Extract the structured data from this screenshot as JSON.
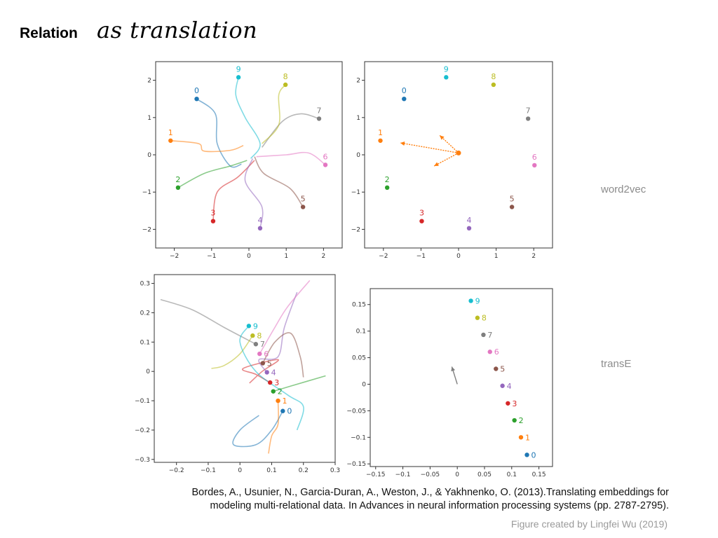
{
  "slide": {
    "title_bold": "Relation",
    "title_italic": "as translation",
    "row_labels": [
      "word2vec",
      "transE"
    ],
    "citation_line1": "Bordes, A., Usunier, N., Garcia-Duran, A., Weston, J., & Yakhnenko, O. (2013).Translating embeddings for",
    "citation_line2": "modeling multi-relational data. In Advances in neural information processing systems (pp. 2787-2795).",
    "credit": "Figure created by Lingfei Wu (2019)"
  },
  "colors": [
    "#1f77b4",
    "#ff7f0e",
    "#2ca02c",
    "#d62728",
    "#9467bd",
    "#8c564b",
    "#e377c2",
    "#7f7f7f",
    "#bcbd22",
    "#17becf"
  ],
  "chart_data": [
    {
      "type": "line",
      "xlim": [
        -2.5,
        2.5
      ],
      "ylim": [
        -2.5,
        2.5
      ],
      "xticks": [
        -2,
        -1,
        0,
        1,
        2
      ],
      "yticks": [
        -2,
        -1,
        0,
        1,
        2
      ],
      "points": [
        {
          "label": "0",
          "x": -1.4,
          "y": 1.5
        },
        {
          "label": "1",
          "x": -2.1,
          "y": 0.38
        },
        {
          "label": "2",
          "x": -1.9,
          "y": -0.88
        },
        {
          "label": "3",
          "x": -0.96,
          "y": -1.78
        },
        {
          "label": "4",
          "x": 0.3,
          "y": -1.97
        },
        {
          "label": "5",
          "x": 1.45,
          "y": -1.4
        },
        {
          "label": "6",
          "x": 2.05,
          "y": -0.27
        },
        {
          "label": "7",
          "x": 1.88,
          "y": 0.97
        },
        {
          "label": "8",
          "x": 0.98,
          "y": 1.88
        },
        {
          "label": "9",
          "x": -0.28,
          "y": 2.08
        }
      ],
      "trajectories": [
        [
          [
            -1.4,
            1.5
          ],
          [
            -0.9,
            1.1
          ],
          [
            -0.85,
            0.3
          ],
          [
            -0.5,
            -0.3
          ],
          [
            -0.2,
            -0.25
          ]
        ],
        [
          [
            -2.1,
            0.38
          ],
          [
            -1.35,
            0.3
          ],
          [
            -1.2,
            0.1
          ],
          [
            -0.5,
            0.12
          ],
          [
            -0.15,
            0.25
          ]
        ],
        [
          [
            -1.9,
            -0.88
          ],
          [
            -1.2,
            -0.5
          ],
          [
            -0.5,
            -0.3
          ],
          [
            -0.05,
            -0.15
          ]
        ],
        [
          [
            -0.96,
            -1.78
          ],
          [
            -0.85,
            -1.0
          ],
          [
            -0.3,
            -0.6
          ],
          [
            0.15,
            -0.15
          ]
        ],
        [
          [
            0.3,
            -1.97
          ],
          [
            0.35,
            -1.4
          ],
          [
            -0.1,
            -0.7
          ],
          [
            0.1,
            -0.1
          ]
        ],
        [
          [
            1.45,
            -1.4
          ],
          [
            1.1,
            -0.9
          ],
          [
            0.4,
            -0.5
          ],
          [
            0.15,
            -0.05
          ]
        ],
        [
          [
            2.05,
            -0.27
          ],
          [
            1.6,
            0.05
          ],
          [
            1.0,
            0.0
          ],
          [
            0.2,
            -0.05
          ]
        ],
        [
          [
            1.88,
            0.97
          ],
          [
            1.4,
            1.1
          ],
          [
            0.9,
            0.9
          ],
          [
            0.35,
            0.2
          ]
        ],
        [
          [
            0.98,
            1.88
          ],
          [
            0.8,
            1.6
          ],
          [
            0.8,
            0.8
          ],
          [
            0.35,
            0.3
          ]
        ],
        [
          [
            -0.28,
            2.08
          ],
          [
            -0.35,
            1.6
          ],
          [
            -0.1,
            1.0
          ],
          [
            0.3,
            0.3
          ],
          [
            0.05,
            -0.1
          ]
        ]
      ]
    },
    {
      "type": "scatter",
      "xlim": [
        -2.5,
        2.5
      ],
      "ylim": [
        -2.5,
        2.5
      ],
      "xticks": [
        -2,
        -1,
        0,
        1,
        2
      ],
      "yticks": [
        -2,
        -1,
        0,
        1,
        2
      ],
      "points": [
        {
          "label": "0",
          "x": -1.45,
          "y": 1.5
        },
        {
          "label": "1",
          "x": -2.08,
          "y": 0.38
        },
        {
          "label": "2",
          "x": -1.9,
          "y": -0.88
        },
        {
          "label": "3",
          "x": -0.98,
          "y": -1.78
        },
        {
          "label": "4",
          "x": 0.28,
          "y": -1.97
        },
        {
          "label": "5",
          "x": 1.42,
          "y": -1.4
        },
        {
          "label": "6",
          "x": 2.02,
          "y": -0.28
        },
        {
          "label": "7",
          "x": 1.85,
          "y": 0.97
        },
        {
          "label": "8",
          "x": 0.93,
          "y": 1.88
        },
        {
          "label": "9",
          "x": -0.33,
          "y": 2.08
        }
      ],
      "arrows": [
        {
          "from": [
            0.0,
            0.05
          ],
          "to": [
            -1.55,
            0.32
          ]
        },
        {
          "from": [
            0.0,
            0.05
          ],
          "to": [
            -0.5,
            0.52
          ]
        },
        {
          "from": [
            0.0,
            0.05
          ],
          "to": [
            -0.65,
            -0.3
          ]
        }
      ]
    },
    {
      "type": "line",
      "xlim": [
        -0.27,
        0.3
      ],
      "ylim": [
        -0.31,
        0.33
      ],
      "xticks": [
        -0.2,
        -0.1,
        0.0,
        0.1,
        0.2,
        0.3
      ],
      "yticks": [
        -0.3,
        -0.2,
        -0.1,
        0.0,
        0.1,
        0.2,
        0.3
      ],
      "points": [
        {
          "label": "0",
          "x": 0.135,
          "y": -0.135
        },
        {
          "label": "1",
          "x": 0.12,
          "y": -0.1
        },
        {
          "label": "2",
          "x": 0.105,
          "y": -0.068
        },
        {
          "label": "3",
          "x": 0.095,
          "y": -0.038
        },
        {
          "label": "4",
          "x": 0.085,
          "y": -0.003
        },
        {
          "label": "5",
          "x": 0.072,
          "y": 0.028
        },
        {
          "label": "6",
          "x": 0.062,
          "y": 0.06
        },
        {
          "label": "7",
          "x": 0.05,
          "y": 0.093
        },
        {
          "label": "8",
          "x": 0.04,
          "y": 0.122
        },
        {
          "label": "9",
          "x": 0.028,
          "y": 0.155
        }
      ],
      "trajectories": [
        [
          [
            0.135,
            -0.135
          ],
          [
            0.1,
            -0.2
          ],
          [
            0.05,
            -0.25
          ],
          [
            -0.02,
            -0.25
          ],
          [
            0.0,
            -0.2
          ],
          [
            0.06,
            -0.15
          ]
        ],
        [
          [
            0.12,
            -0.1
          ],
          [
            0.12,
            -0.18
          ],
          [
            0.1,
            -0.22
          ],
          [
            0.09,
            -0.28
          ]
        ],
        [
          [
            0.105,
            -0.068
          ],
          [
            0.16,
            -0.05
          ],
          [
            0.27,
            -0.015
          ]
        ],
        [
          [
            0.095,
            -0.038
          ],
          [
            0.05,
            -0.01
          ],
          [
            0.01,
            0.01
          ],
          [
            0.12,
            0.04
          ],
          [
            0.07,
            0.0
          ],
          [
            0.03,
            -0.04
          ]
        ],
        [
          [
            0.085,
            -0.003
          ],
          [
            0.06,
            0.04
          ],
          [
            0.12,
            0.05
          ],
          [
            0.14,
            0.15
          ],
          [
            0.18,
            0.27
          ]
        ],
        [
          [
            0.072,
            0.028
          ],
          [
            0.11,
            0.1
          ],
          [
            0.16,
            0.13
          ],
          [
            0.19,
            0.05
          ],
          [
            0.2,
            -0.02
          ]
        ],
        [
          [
            0.062,
            0.06
          ],
          [
            0.11,
            0.15
          ],
          [
            0.15,
            0.22
          ],
          [
            0.22,
            0.31
          ]
        ],
        [
          [
            0.05,
            0.093
          ],
          [
            -0.05,
            0.15
          ],
          [
            -0.15,
            0.21
          ],
          [
            -0.25,
            0.245
          ]
        ],
        [
          [
            0.04,
            0.122
          ],
          [
            0.0,
            0.06
          ],
          [
            -0.05,
            0.02
          ],
          [
            -0.09,
            0.01
          ]
        ],
        [
          [
            0.028,
            0.155
          ],
          [
            0.0,
            0.1
          ],
          [
            0.05,
            0.0
          ],
          [
            0.15,
            -0.08
          ],
          [
            0.2,
            -0.12
          ],
          [
            0.18,
            -0.2
          ]
        ]
      ]
    },
    {
      "type": "scatter",
      "xlim": [
        -0.16,
        0.175
      ],
      "ylim": [
        -0.155,
        0.18
      ],
      "xticks": [
        -0.15,
        -0.1,
        -0.05,
        0.0,
        0.05,
        0.1,
        0.15
      ],
      "yticks": [
        -0.15,
        -0.1,
        -0.05,
        0.0,
        0.05,
        0.1,
        0.15
      ],
      "points": [
        {
          "label": "0",
          "x": 0.128,
          "y": -0.133
        },
        {
          "label": "1",
          "x": 0.117,
          "y": -0.1
        },
        {
          "label": "2",
          "x": 0.105,
          "y": -0.068
        },
        {
          "label": "3",
          "x": 0.093,
          "y": -0.036
        },
        {
          "label": "4",
          "x": 0.083,
          "y": -0.003
        },
        {
          "label": "5",
          "x": 0.071,
          "y": 0.029
        },
        {
          "label": "6",
          "x": 0.06,
          "y": 0.061
        },
        {
          "label": "7",
          "x": 0.048,
          "y": 0.093
        },
        {
          "label": "8",
          "x": 0.037,
          "y": 0.125
        },
        {
          "label": "9",
          "x": 0.025,
          "y": 0.157
        }
      ],
      "arrows": [
        {
          "from": [
            0.0,
            0.0
          ],
          "to": [
            -0.01,
            0.033
          ]
        }
      ]
    }
  ]
}
